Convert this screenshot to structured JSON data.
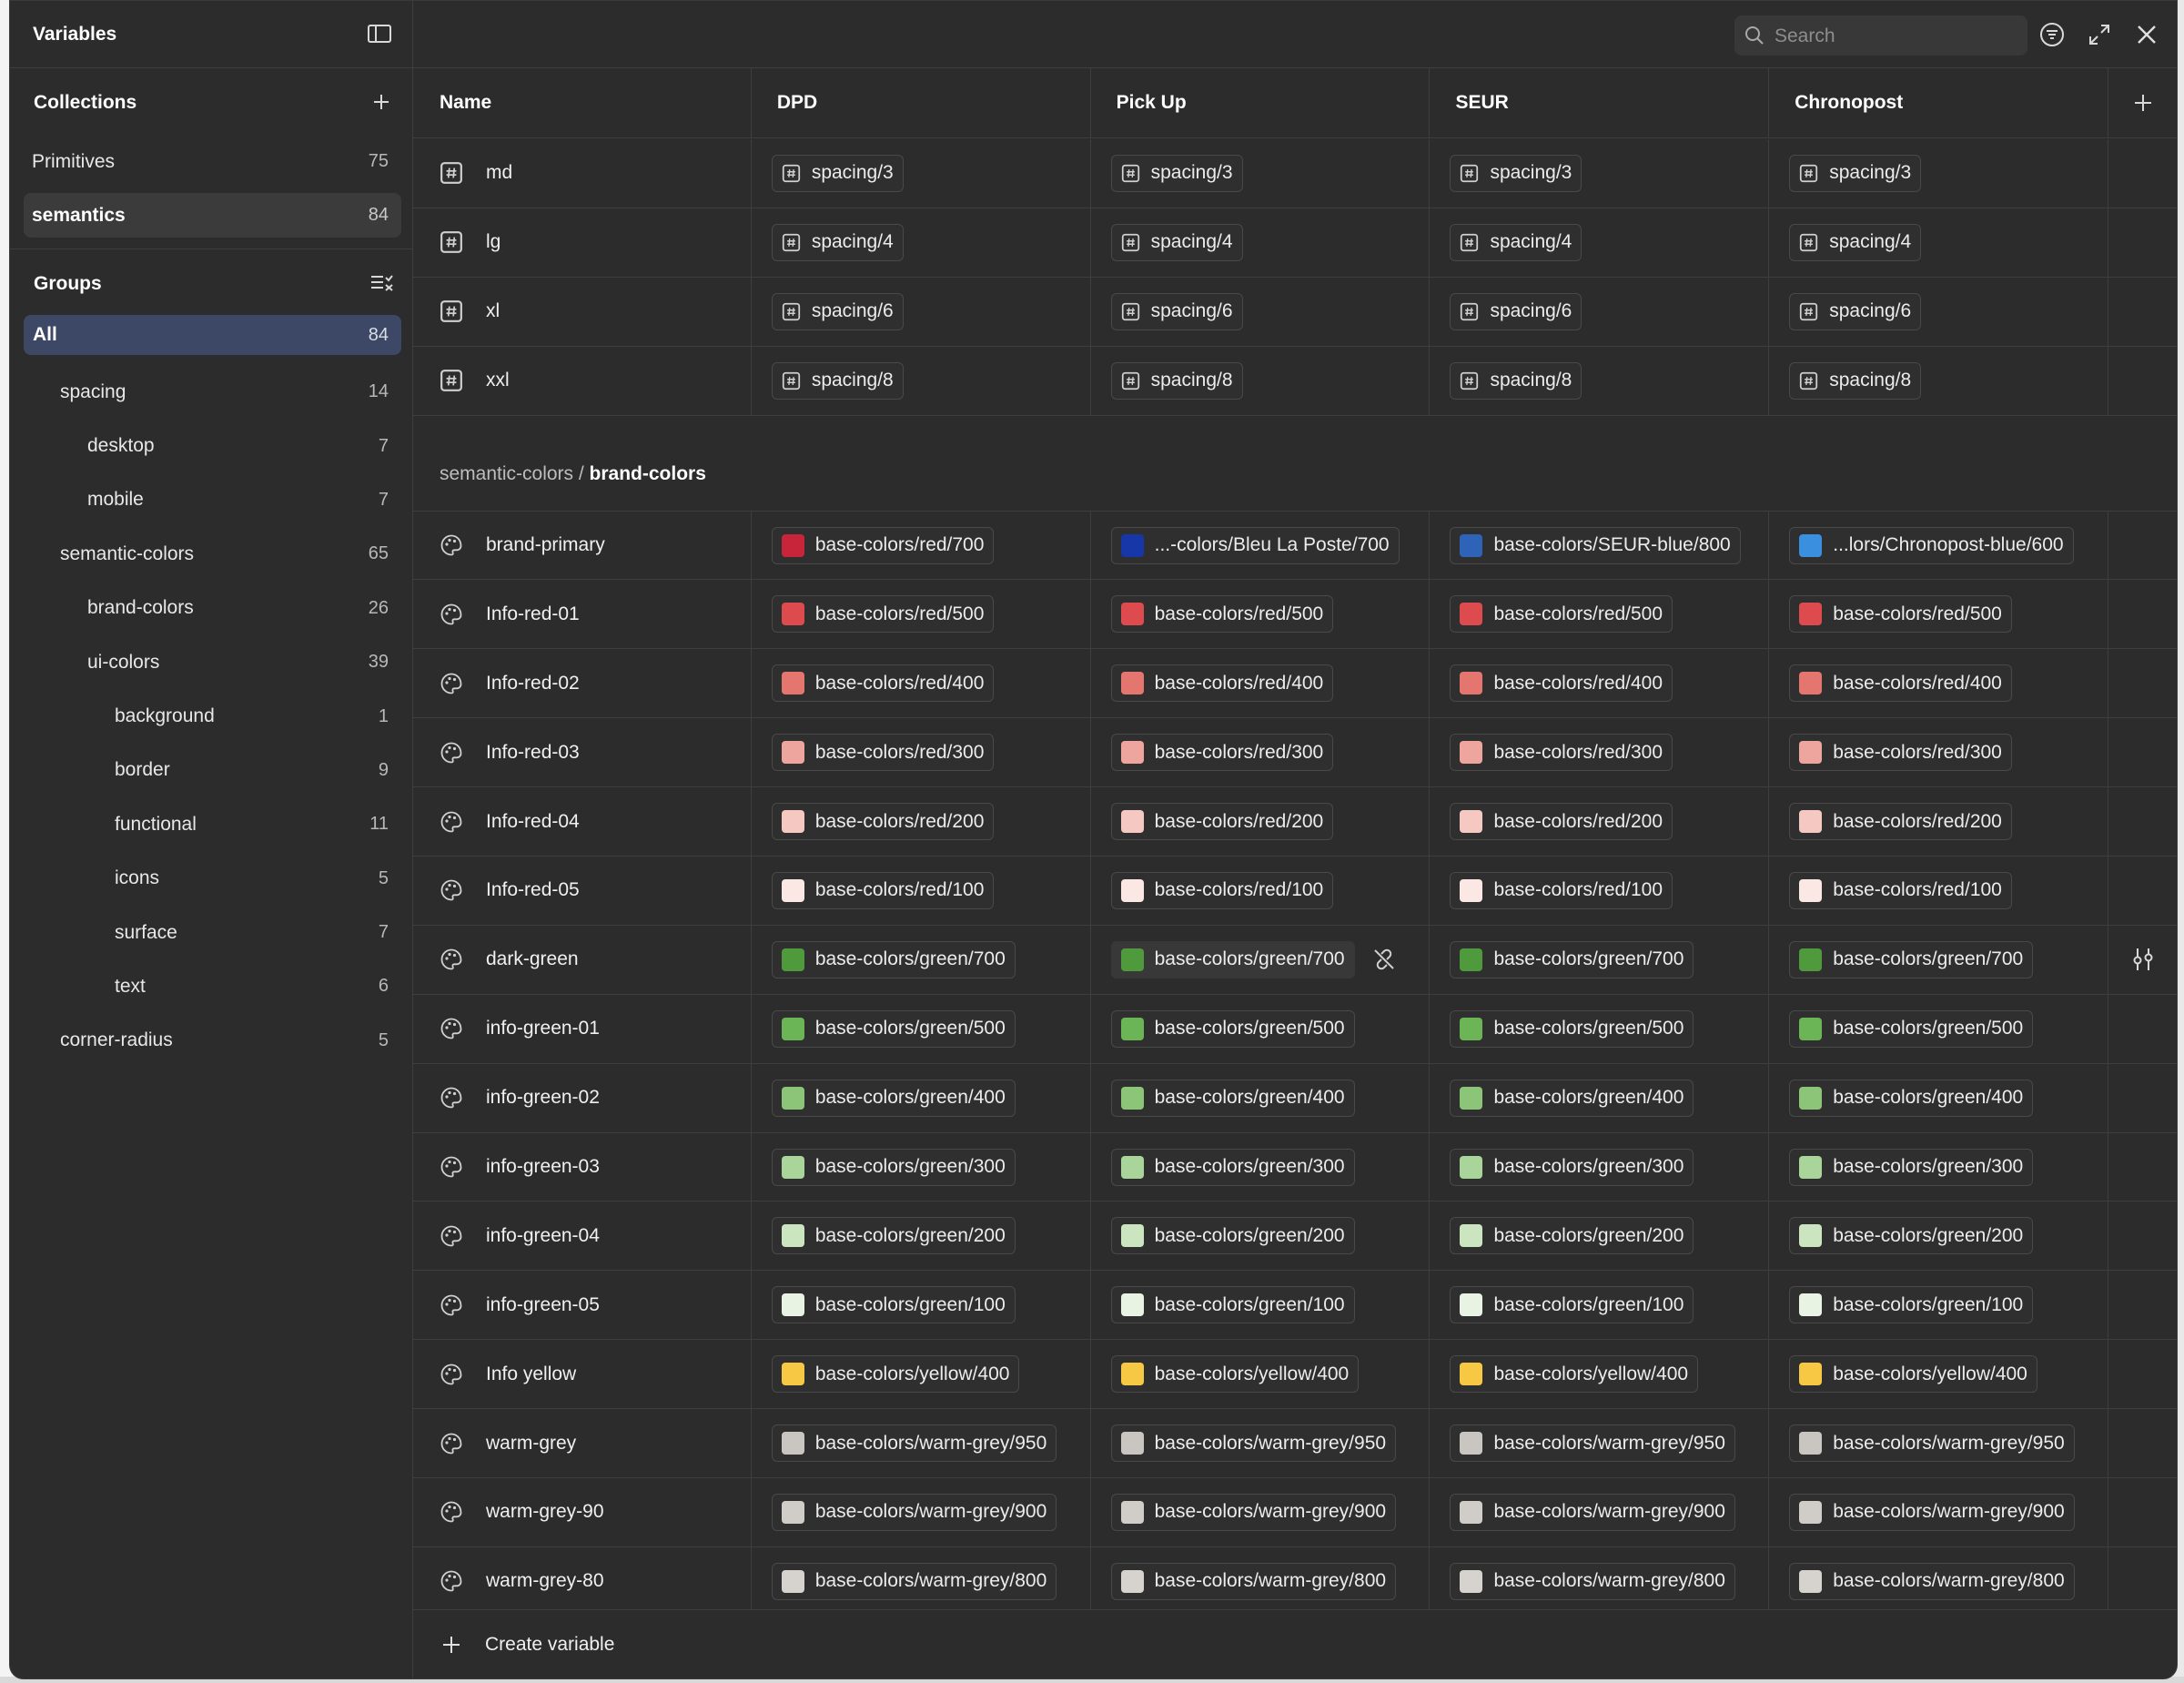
{
  "sidebar": {
    "title": "Variables",
    "collections_label": "Collections",
    "collections": [
      {
        "label": "Primitives",
        "count": "75"
      },
      {
        "label": "semantics",
        "count": "84"
      }
    ],
    "groups_label": "Groups",
    "groups": [
      {
        "label": "All",
        "count": "84",
        "indent": 0
      },
      {
        "label": "spacing",
        "count": "14",
        "indent": 1
      },
      {
        "label": "desktop",
        "count": "7",
        "indent": 2
      },
      {
        "label": "mobile",
        "count": "7",
        "indent": 2
      },
      {
        "label": "semantic-colors",
        "count": "65",
        "indent": 1
      },
      {
        "label": "brand-colors",
        "count": "26",
        "indent": 2
      },
      {
        "label": "ui-colors",
        "count": "39",
        "indent": 2
      },
      {
        "label": "background",
        "count": "1",
        "indent": 3
      },
      {
        "label": "border",
        "count": "9",
        "indent": 3
      },
      {
        "label": "functional",
        "count": "11",
        "indent": 3
      },
      {
        "label": "icons",
        "count": "5",
        "indent": 3
      },
      {
        "label": "surface",
        "count": "7",
        "indent": 3
      },
      {
        "label": "text",
        "count": "6",
        "indent": 3
      },
      {
        "label": "corner-radius",
        "count": "5",
        "indent": 1
      }
    ]
  },
  "toolbar": {
    "search_placeholder": "Search"
  },
  "table": {
    "headers": [
      "Name",
      "DPD",
      "Pick Up",
      "SEUR",
      "Chronopost"
    ],
    "spacing_rows": [
      {
        "name": "md",
        "values": [
          "spacing/3",
          "spacing/3",
          "spacing/3",
          "spacing/3"
        ]
      },
      {
        "name": "lg",
        "values": [
          "spacing/4",
          "spacing/4",
          "spacing/4",
          "spacing/4"
        ]
      },
      {
        "name": "xl",
        "values": [
          "spacing/6",
          "spacing/6",
          "spacing/6",
          "spacing/6"
        ]
      },
      {
        "name": "xxl",
        "values": [
          "spacing/8",
          "spacing/8",
          "spacing/8",
          "spacing/8"
        ]
      }
    ],
    "group_path": "semantic-colors / ",
    "group_name": "brand-colors",
    "color_rows": [
      {
        "name": "brand-primary",
        "values": [
          "base-colors/red/700",
          "...-colors/Bleu La Poste/700",
          "base-colors/SEUR-blue/800",
          "...lors/Chronopost-blue/600"
        ],
        "swatches": [
          "#c8243a",
          "#1736a8",
          "#2e63b7",
          "#3a8fde"
        ]
      },
      {
        "name": "Info-red-01",
        "values": [
          "base-colors/red/500",
          "base-colors/red/500",
          "base-colors/red/500",
          "base-colors/red/500"
        ],
        "swatches": [
          "#dd4b4e",
          "#dd4b4e",
          "#dd4b4e",
          "#dd4b4e"
        ]
      },
      {
        "name": "Info-red-02",
        "values": [
          "base-colors/red/400",
          "base-colors/red/400",
          "base-colors/red/400",
          "base-colors/red/400"
        ],
        "swatches": [
          "#e5756f",
          "#e5756f",
          "#e5756f",
          "#e5756f"
        ]
      },
      {
        "name": "Info-red-03",
        "values": [
          "base-colors/red/300",
          "base-colors/red/300",
          "base-colors/red/300",
          "base-colors/red/300"
        ],
        "swatches": [
          "#eea59d",
          "#eea59d",
          "#eea59d",
          "#eea59d"
        ]
      },
      {
        "name": "Info-red-04",
        "values": [
          "base-colors/red/200",
          "base-colors/red/200",
          "base-colors/red/200",
          "base-colors/red/200"
        ],
        "swatches": [
          "#f5c9c2",
          "#f5c9c2",
          "#f5c9c2",
          "#f5c9c2"
        ]
      },
      {
        "name": "Info-red-05",
        "values": [
          "base-colors/red/100",
          "base-colors/red/100",
          "base-colors/red/100",
          "base-colors/red/100"
        ],
        "swatches": [
          "#fbe7e3",
          "#fbe7e3",
          "#fbe7e3",
          "#fbe7e3"
        ]
      },
      {
        "name": "dark-green",
        "values": [
          "base-colors/green/700",
          "base-colors/green/700",
          "base-colors/green/700",
          "base-colors/green/700"
        ],
        "swatches": [
          "#4f9a3c",
          "#4f9a3c",
          "#4f9a3c",
          "#4f9a3c"
        ]
      },
      {
        "name": "info-green-01",
        "values": [
          "base-colors/green/500",
          "base-colors/green/500",
          "base-colors/green/500",
          "base-colors/green/500"
        ],
        "swatches": [
          "#6cb556",
          "#6cb556",
          "#6cb556",
          "#6cb556"
        ]
      },
      {
        "name": "info-green-02",
        "values": [
          "base-colors/green/400",
          "base-colors/green/400",
          "base-colors/green/400",
          "base-colors/green/400"
        ],
        "swatches": [
          "#8cc478",
          "#8cc478",
          "#8cc478",
          "#8cc478"
        ]
      },
      {
        "name": "info-green-03",
        "values": [
          "base-colors/green/300",
          "base-colors/green/300",
          "base-colors/green/300",
          "base-colors/green/300"
        ],
        "swatches": [
          "#a9d49a",
          "#a9d49a",
          "#a9d49a",
          "#a9d49a"
        ]
      },
      {
        "name": "info-green-04",
        "values": [
          "base-colors/green/200",
          "base-colors/green/200",
          "base-colors/green/200",
          "base-colors/green/200"
        ],
        "swatches": [
          "#cbe5c0",
          "#cbe5c0",
          "#cbe5c0",
          "#cbe5c0"
        ]
      },
      {
        "name": "info-green-05",
        "values": [
          "base-colors/green/100",
          "base-colors/green/100",
          "base-colors/green/100",
          "base-colors/green/100"
        ],
        "swatches": [
          "#e8f3e3",
          "#e8f3e3",
          "#e8f3e3",
          "#e8f3e3"
        ]
      },
      {
        "name": "Info yellow",
        "values": [
          "base-colors/yellow/400",
          "base-colors/yellow/400",
          "base-colors/yellow/400",
          "base-colors/yellow/400"
        ],
        "swatches": [
          "#f6c843",
          "#f6c843",
          "#f6c843",
          "#f6c843"
        ]
      },
      {
        "name": "warm-grey",
        "values": [
          "base-colors/warm-grey/950",
          "base-colors/warm-grey/950",
          "base-colors/warm-grey/950",
          "base-colors/warm-grey/950"
        ],
        "swatches": [
          "#c9c5c0",
          "#c9c5c0",
          "#c9c5c0",
          "#c9c5c0"
        ]
      },
      {
        "name": "warm-grey-90",
        "values": [
          "base-colors/warm-grey/900",
          "base-colors/warm-grey/900",
          "base-colors/warm-grey/900",
          "base-colors/warm-grey/900"
        ],
        "swatches": [
          "#d0ccc8",
          "#d0ccc8",
          "#d0ccc8",
          "#d0ccc8"
        ]
      },
      {
        "name": "warm-grey-80",
        "values": [
          "base-colors/warm-grey/800",
          "base-colors/warm-grey/800",
          "base-colors/warm-grey/800",
          "base-colors/warm-grey/800"
        ],
        "swatches": [
          "#d6d3cf",
          "#d6d3cf",
          "#d6d3cf",
          "#d6d3cf"
        ]
      }
    ]
  },
  "footer": {
    "create_label": "Create variable"
  }
}
